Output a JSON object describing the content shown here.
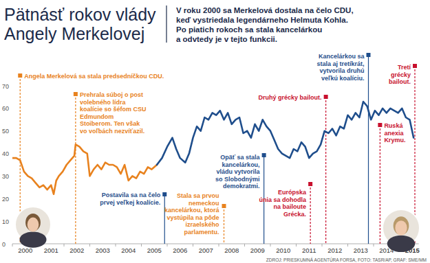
{
  "chart_data": {
    "type": "line",
    "title": [
      "Pätnásť rokov vlády",
      "Angely Merkelovej"
    ],
    "subtitle": [
      "V roku 2000 sa Merkelová dostala na čelo CDU,",
      "keď vystriedala legendárneho Helmuta Kohla.",
      "Po piatich rokoch sa stala kancelárkou",
      "a odvtedy je v tejto funkcii."
    ],
    "source": "ZDROJ: PRIESKUMNÁ AGENTÚRA FORSA, FOTO: TASR/AP, GRAF: SME/MM",
    "xlim": [
      2000,
      2015.75
    ],
    "xticks": [
      2000,
      2001,
      2002,
      2003,
      2004,
      2005,
      2006,
      2007,
      2008,
      2009,
      2010,
      2011,
      2012,
      2013,
      2014,
      2015
    ],
    "ylim": [
      0,
      70
    ],
    "yticks": [
      0,
      10,
      20,
      30,
      40,
      50,
      60,
      70
    ],
    "grid": false,
    "series": [
      {
        "color": "#e8821e",
        "x": [
          2000.0,
          2000.15,
          2000.3,
          2000.45,
          2000.6,
          2000.75,
          2000.9,
          2001.05,
          2001.2,
          2001.35,
          2001.5,
          2001.6,
          2001.7,
          2001.8,
          2001.95,
          2002.1,
          2002.25,
          2002.4,
          2002.45,
          2002.6,
          2002.75,
          2002.9,
          2003.0,
          2003.15,
          2003.3,
          2003.45,
          2003.6,
          2003.75,
          2003.9,
          2004.05,
          2004.2,
          2004.35,
          2004.5,
          2004.65,
          2004.8,
          2004.95,
          2005.1,
          2005.25,
          2005.4,
          2005.6
        ],
        "values": [
          38,
          38,
          37,
          32,
          30,
          29,
          27,
          25,
          26,
          24,
          26,
          22,
          28,
          30,
          32,
          35,
          37,
          39,
          44,
          43,
          41,
          40,
          30,
          33,
          35,
          33,
          36,
          35,
          35,
          34,
          31,
          35,
          28,
          30,
          29,
          32,
          31,
          34,
          33,
          35
        ]
      },
      {
        "color": "#1f4e8c",
        "x": [
          2005.6,
          2005.8,
          2006.0,
          2006.2,
          2006.35,
          2006.5,
          2006.7,
          2006.85,
          2007.0,
          2007.15,
          2007.3,
          2007.45,
          2007.6,
          2007.75,
          2007.9,
          2008.05,
          2008.2,
          2008.35,
          2008.5,
          2008.65,
          2008.8,
          2008.95,
          2009.1,
          2009.25,
          2009.4,
          2009.55,
          2009.7,
          2009.85,
          2010.0,
          2010.15,
          2010.3,
          2010.45,
          2010.6,
          2010.75,
          2010.9,
          2011.05,
          2011.2,
          2011.35,
          2011.5,
          2011.65,
          2011.8,
          2011.95,
          2012.1,
          2012.25,
          2012.4,
          2012.55,
          2012.7,
          2012.85,
          2013.0,
          2013.15,
          2013.3,
          2013.45,
          2013.6,
          2013.75,
          2013.9,
          2014.05,
          2014.2,
          2014.35,
          2014.5,
          2014.65,
          2014.8,
          2014.95,
          2015.1,
          2015.25,
          2015.4,
          2015.55
        ],
        "values": [
          35,
          38,
          43,
          47,
          42,
          38,
          36,
          40,
          47,
          52,
          50,
          56,
          55,
          58,
          57,
          59,
          55,
          58,
          53,
          55,
          56,
          49,
          50,
          47,
          53,
          50,
          55,
          52,
          50,
          46,
          42,
          40,
          39,
          38,
          42,
          41,
          45,
          43,
          38,
          40,
          41,
          44,
          50,
          49,
          51,
          48,
          52,
          51,
          57,
          55,
          58,
          56,
          63,
          61,
          55,
          59,
          57,
          60,
          58,
          60,
          59,
          58,
          60,
          56,
          55,
          47
        ]
      }
    ],
    "annotations": [
      {
        "x": 2000.3,
        "color": "#e8821e",
        "line_style": "dashed",
        "text": [
          "Angela Merkelová sa stala predsedníčkou CDU."
        ]
      },
      {
        "x": 2002.45,
        "color": "#e8821e",
        "line_style": "dashed",
        "text": [
          "Prehrala súboj o post",
          "volebného lídra",
          "koalície so šéfom CSU",
          "Edmundom",
          "Stoiberom. Ten však",
          "vo voľbách nezvíťazil."
        ]
      },
      {
        "x": 2005.9,
        "color": "#1f4e8c",
        "line_style": "solid",
        "text": [
          "Postavila sa na čelo",
          "prvej veľkej koalície."
        ]
      },
      {
        "x": 2008.2,
        "color": "#e8821e",
        "line_style": "dashed",
        "text": [
          "Stala sa prvou",
          "nemeckou",
          "kancelárkou, ktorá",
          "vystúpila na pôde",
          "izraelského",
          "parlamentu."
        ]
      },
      {
        "x": 2009.75,
        "color": "#1f4e8c",
        "line_style": "solid",
        "text": [
          "Opäť sa stala",
          "kancelárkou,",
          "vládu vytvorila",
          "so Slobodnými",
          "demokratmi."
        ]
      },
      {
        "x": 2011.55,
        "color": "#c8102e",
        "line_style": "dashed",
        "text": [
          "Európska",
          "únia sa dohodla",
          "na bailoute",
          "Grécka."
        ]
      },
      {
        "x": 2012.15,
        "color": "#c8102e",
        "line_style": "dashed",
        "text": [
          "Druhý grécky bailout."
        ]
      },
      {
        "x": 2013.8,
        "color": "#1f4e8c",
        "line_style": "solid",
        "text": [
          "Kancelárkou sa",
          "stala aj tretíkrát,",
          "vytvorila druhú",
          "veľkú koalíciu."
        ]
      },
      {
        "x": 2014.25,
        "color": "#c8102e",
        "line_style": "dashed",
        "text": [
          "Ruská",
          "anexia",
          "Krymu."
        ]
      },
      {
        "x": 2015.6,
        "color": "#c8102e",
        "line_style": "dashed",
        "text": [
          "Tretí",
          "grécky",
          "bailout."
        ]
      }
    ]
  }
}
